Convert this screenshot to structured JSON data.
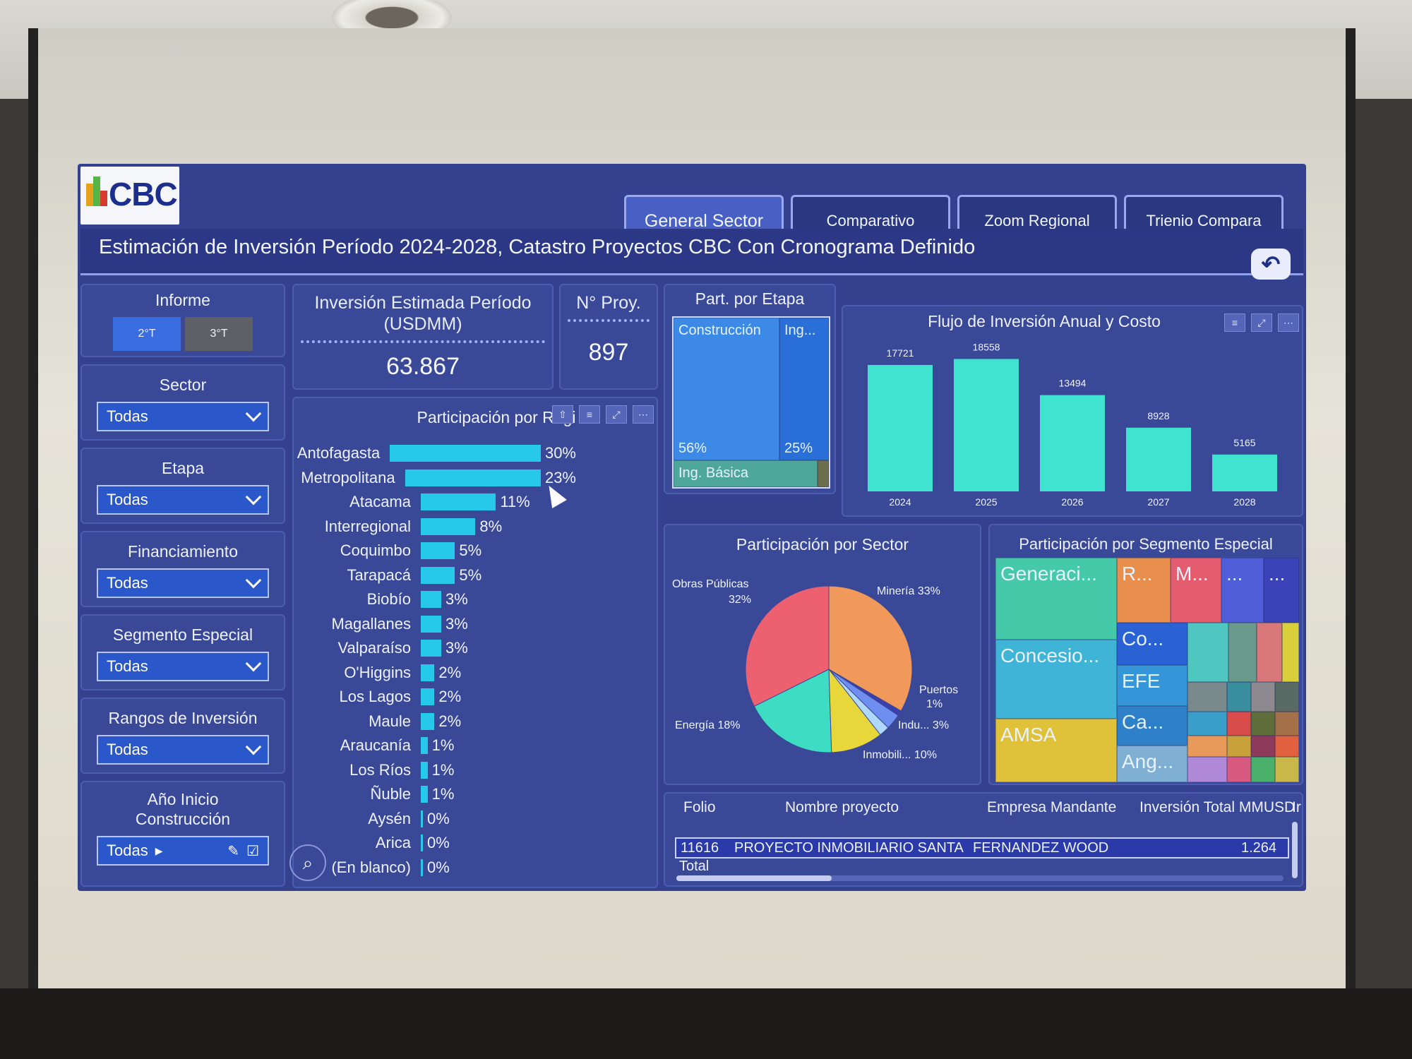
{
  "logo": {
    "text": "CBC"
  },
  "tabs": [
    {
      "label": "General Sector",
      "active": true
    },
    {
      "label": "Comparativo",
      "active": false
    },
    {
      "label": "Zoom Regional",
      "active": false
    },
    {
      "label": "Trienio Compara",
      "active": false
    }
  ],
  "title": "Estimación de Inversión Período 2024-2028, Catastro Proyectos CBC Con Cronograma Definido",
  "filters": {
    "informe": {
      "label": "Informe",
      "options": [
        "2°T",
        "3°T"
      ],
      "selected": "2°T"
    },
    "sector": {
      "label": "Sector",
      "value": "Todas"
    },
    "etapa": {
      "label": "Etapa",
      "value": "Todas"
    },
    "financiamiento": {
      "label": "Financiamiento",
      "value": "Todas"
    },
    "segmento": {
      "label": "Segmento Especial",
      "value": "Todas"
    },
    "rangos": {
      "label": "Rangos de Inversión",
      "value": "Todas"
    },
    "anio": {
      "label": "Año Inicio Construcción",
      "value": "Todas"
    }
  },
  "kpis": {
    "inversion": {
      "label": "Inversión Estimada Período (USDMM)",
      "value": "63.867"
    },
    "proyectos": {
      "label": "N° Proy.",
      "value": "897"
    }
  },
  "etapa_chart": {
    "title": "Part. por Etapa",
    "cells": [
      {
        "label": "Construcción",
        "pct": "56%"
      },
      {
        "label": "Ing...",
        "pct": "25%"
      },
      {
        "label": "Ing. Básica",
        "pct": ""
      }
    ]
  },
  "flujo_chart": {
    "title": "Flujo de Inversión Anual y Costo"
  },
  "region_chart": {
    "title": "Participación por Regi"
  },
  "sector_chart": {
    "title": "Participación por Sector"
  },
  "segmento_chart": {
    "title": "Participación por Segmento Especial",
    "cells": [
      "Generaci...",
      "R...",
      "M...",
      "...",
      "...",
      "Concesio...",
      "Co...",
      "EFE",
      "AMSA",
      "Ca...",
      "Ang..."
    ]
  },
  "table": {
    "headers": [
      "Folio",
      "Nombre proyecto",
      "Empresa Mandante",
      "Inversión Total MMUSD",
      "Ir"
    ],
    "row": [
      "11616",
      "PROYECTO INMOBILIARIO SANTA",
      "FERNANDEZ WOOD",
      "1.264"
    ],
    "total_label": "Total"
  },
  "chart_data": [
    {
      "type": "bar",
      "title": "Flujo de Inversión Anual y Costo",
      "categories": [
        "2024",
        "2025",
        "2026",
        "2027",
        "2028"
      ],
      "values": [
        17721,
        18558,
        13494,
        8928,
        5165
      ],
      "ylim": [
        0,
        19000
      ]
    },
    {
      "type": "bar",
      "orientation": "horizontal",
      "title": "Participación por Regi",
      "categories": [
        "Antofagasta",
        "Metropolitana",
        "Atacama",
        "Interregional",
        "Coquimbo",
        "Tarapacá",
        "Biobío",
        "Magallanes",
        "Valparaíso",
        "O'Higgins",
        "Los Lagos",
        "Maule",
        "Araucanía",
        "Los Ríos",
        "Ñuble",
        "Aysén",
        "Arica",
        "(En blanco)"
      ],
      "values": [
        30,
        23,
        11,
        8,
        5,
        5,
        3,
        3,
        3,
        2,
        2,
        2,
        1,
        1,
        1,
        0,
        0,
        0
      ],
      "labels": [
        "30%",
        "23%",
        "11%",
        "8%",
        "5%",
        "5%",
        "3%",
        "3%",
        "3%",
        "2%",
        "2%",
        "2%",
        "1%",
        "1%",
        "1%",
        "0%",
        "0%",
        "0%"
      ]
    },
    {
      "type": "pie",
      "title": "Participación por Sector",
      "slices": [
        {
          "label": "Minería 33%",
          "value": 33,
          "color": "#f0995a"
        },
        {
          "label": "Puertos 1%",
          "value": 1,
          "color": "#3a3fae"
        },
        {
          "label": "Indu... 3%",
          "value": 3,
          "color": "#6e8ef0"
        },
        {
          "label": "",
          "value": 2,
          "color": "#b0d8ff"
        },
        {
          "label": "Inmobili... 10%",
          "value": 10,
          "color": "#e8d73a"
        },
        {
          "label": "Energía 18%",
          "value": 18,
          "color": "#3fdcc4"
        },
        {
          "label": "Obras Públicas 32%",
          "value": 32,
          "color": "#ec6070"
        }
      ]
    }
  ]
}
